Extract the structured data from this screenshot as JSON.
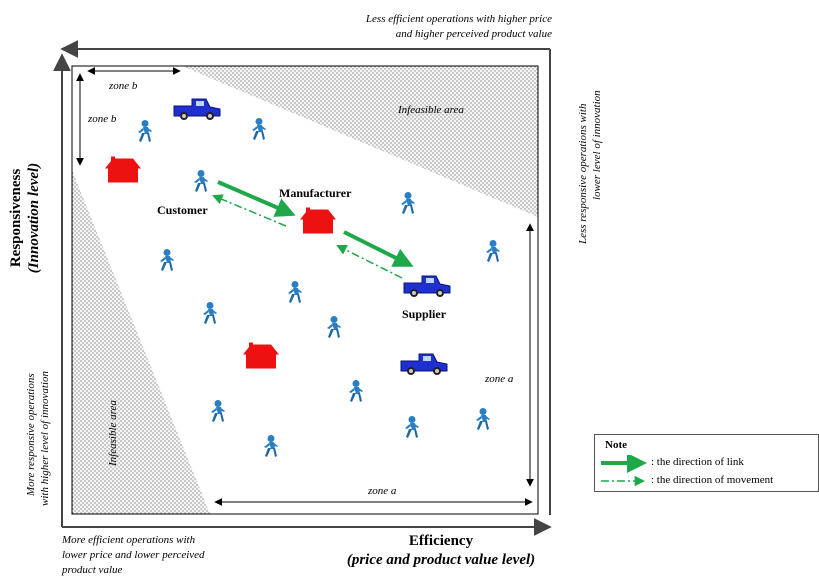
{
  "labels": {
    "top_right_line1": "Less efficient operations with higher price",
    "top_right_line2": "and higher perceived product value",
    "right_vertical_line1": "Less responsive operations with",
    "right_vertical_line2": "lower level of innovation",
    "left_vertical_line1": "More responsive operations",
    "left_vertical_line2": "with higher level of innovation",
    "bottom_left_line1": "More efficient operations with",
    "bottom_left_line2": "lower price and lower perceived",
    "bottom_left_line3": "product value",
    "y_axis_line1": "Responsiveness",
    "y_axis_line2": "(Innovation level)",
    "x_axis_line1": "Efficiency",
    "x_axis_line2": "(price and product value level)",
    "infeasible_top": "Infeasible area",
    "infeasible_left": "Infeasible area",
    "zone_b_top": "zone b",
    "zone_b_left": "zone b",
    "zone_a_bottom": "zone a",
    "zone_a_right": "zone a",
    "customer": "Customer",
    "manufacturer": "Manufacturer",
    "supplier": "Supplier"
  },
  "note": {
    "title": "Note",
    "link": ": the direction of link",
    "movement": ": the direction of movement"
  },
  "colors": {
    "house": "#ee1111",
    "truck": "#1f2fd0",
    "person": "#2a7fc4",
    "arrow": "#1fa84a",
    "dots": "#9a9a9a"
  },
  "icons": {
    "house": "house-icon",
    "truck": "truck-icon",
    "person": "person-icon"
  }
}
